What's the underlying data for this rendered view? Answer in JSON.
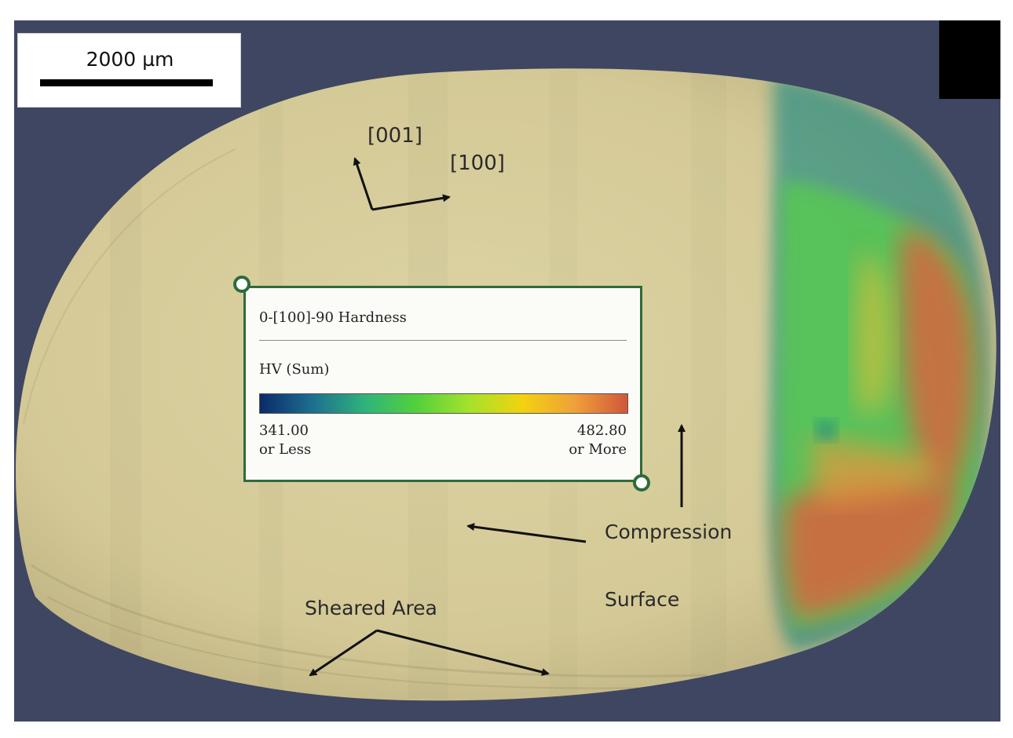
{
  "scale_bar": {
    "label": "2000 µm"
  },
  "orientation": {
    "axis_a": "[001]",
    "axis_b": "[100]"
  },
  "legend": {
    "title": "0-[100]-90 Hardness",
    "quantity": "HV (Sum)",
    "min_value": "341.00",
    "min_qualifier": "or Less",
    "max_value": "482.80",
    "max_qualifier": "or More",
    "colormap": [
      "#0b2a6a",
      "#1d6f8f",
      "#2fb37a",
      "#54d13c",
      "#a6e22b",
      "#f3d20f",
      "#f0a03a",
      "#d0573a"
    ]
  },
  "annotations": {
    "compression": "Compression",
    "surface": "Surface",
    "sheared_area": "Sheared Area"
  },
  "colors": {
    "background_mount": "#3f4662",
    "specimen": "#d7cd9c",
    "heatmap_low": "#1f8a82",
    "heatmap_mid": "#58c853",
    "heatmap_high": "#d06a3f",
    "legend_border": "#2f6b3a"
  }
}
